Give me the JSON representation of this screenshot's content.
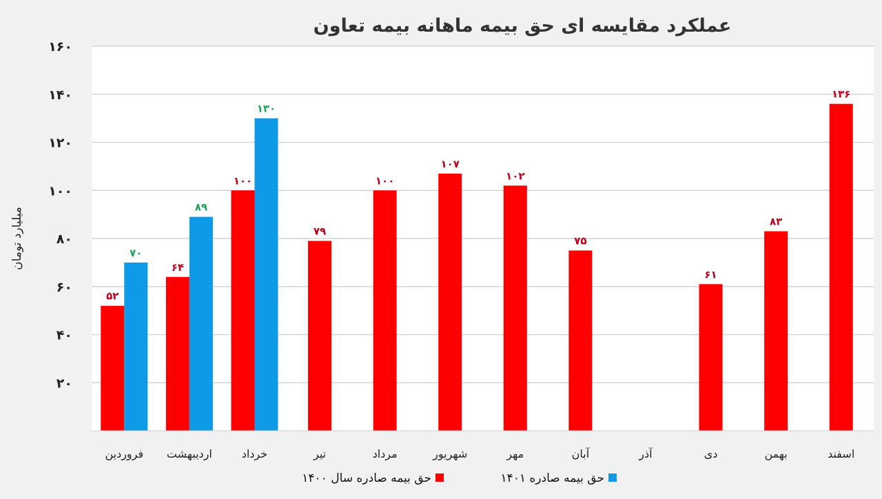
{
  "chart_data": {
    "type": "bar",
    "title": "عملکرد مقایسه ای حق بیمه ماهانه بیمه تعاون",
    "ylabel": "میلیارد تومان",
    "xlabel": "",
    "ylim": [
      0,
      160
    ],
    "yticks": [
      20,
      40,
      60,
      80,
      100,
      120,
      140,
      160
    ],
    "ytick_labels": [
      "۲۰",
      "۴۰",
      "۶۰",
      "۸۰",
      "۱۰۰",
      "۱۲۰",
      "۱۴۰",
      "۱۶۰"
    ],
    "grid": true,
    "legend_position": "bottom",
    "categories": [
      "فروردین",
      "اردیبهشت",
      "خرداد",
      "تیر",
      "مرداد",
      "شهریور",
      "مهر",
      "آبان",
      "آذر",
      "دی",
      "بهمن",
      "اسفند"
    ],
    "series": [
      {
        "name": "حق بیمه صادره سال ۱۴۰۰",
        "color": "#ff0000",
        "label_color": "#c0001a",
        "values": [
          52,
          64,
          100,
          79,
          100,
          107,
          102,
          75,
          null,
          61,
          83,
          136
        ],
        "labels": [
          "۵۲",
          "۶۴",
          "۱۰۰",
          "۷۹",
          "۱۰۰",
          "۱۰۷",
          "۱۰۲",
          "۷۵",
          "",
          "۶۱",
          "۸۳",
          "۱۳۶"
        ]
      },
      {
        "name": "حق بیمه صادره ۱۴۰۱",
        "color": "#0f9ae8",
        "label_color": "#1fa35a",
        "values": [
          70,
          89,
          130,
          null,
          null,
          null,
          null,
          null,
          null,
          null,
          null,
          null
        ],
        "labels": [
          "۷۰",
          "۸۹",
          "۱۳۰",
          "",
          "",
          "",
          "",
          "",
          "",
          "",
          "",
          ""
        ]
      }
    ]
  }
}
